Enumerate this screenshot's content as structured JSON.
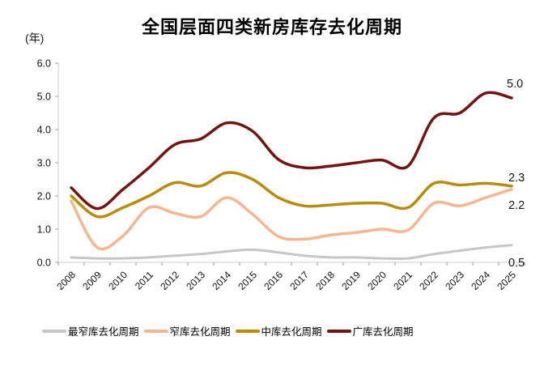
{
  "page": {
    "title": "全国层面四类新房库存去化周期",
    "unit_label": "(年)"
  },
  "chart_data": {
    "type": "line",
    "title": "全国层面四类新房库存去化周期",
    "ylabel": "(年)",
    "xlabel": "",
    "grid": false,
    "legend_position": "bottom",
    "categories": [
      "2008",
      "2009",
      "2010",
      "2011",
      "2012",
      "2013",
      "2014",
      "2015",
      "2016",
      "2017",
      "2018",
      "2019",
      "2020",
      "2021",
      "2022",
      "2023",
      "2024",
      "2025"
    ],
    "axis": {
      "ymin": 0,
      "ymax": 6,
      "ystep": 1,
      "ytick_labels": [
        "0.0",
        "1.0",
        "2.0",
        "3.0",
        "4.0",
        "5.0",
        "6.0"
      ],
      "axis_color": "#d6d6d6",
      "tick_color": "#aaaaaa",
      "label_color": "#111111"
    },
    "series": [
      {
        "name": "最窄库去化周期",
        "color": "#c6c6c6",
        "stroke_width": 3,
        "values": [
          0.15,
          0.12,
          0.12,
          0.15,
          0.2,
          0.25,
          0.33,
          0.38,
          0.3,
          0.2,
          0.15,
          0.15,
          0.12,
          0.12,
          0.25,
          0.35,
          0.45,
          0.52
        ]
      },
      {
        "name": "窄库去化周期",
        "color": "#f6b690",
        "stroke_width": 3.5,
        "values": [
          1.85,
          0.45,
          0.8,
          1.65,
          1.48,
          1.38,
          1.95,
          1.45,
          0.78,
          0.7,
          0.82,
          0.9,
          1.0,
          0.97,
          1.78,
          1.7,
          1.95,
          2.2
        ]
      },
      {
        "name": "中库去化周期",
        "color": "#b98d0a",
        "stroke_width": 3.5,
        "values": [
          2.0,
          1.38,
          1.65,
          2.0,
          2.4,
          2.3,
          2.7,
          2.5,
          1.95,
          1.7,
          1.73,
          1.78,
          1.78,
          1.65,
          2.38,
          2.33,
          2.38,
          2.3
        ]
      },
      {
        "name": "广库去化周期",
        "color": "#741410",
        "stroke_width": 3.5,
        "values": [
          2.25,
          1.62,
          2.2,
          2.85,
          3.55,
          3.72,
          4.2,
          3.95,
          3.1,
          2.85,
          2.9,
          3.0,
          3.08,
          2.9,
          4.35,
          4.5,
          5.1,
          4.95
        ]
      }
    ],
    "annotations": [
      {
        "text": "5.0",
        "x": 626,
        "y": 108
      },
      {
        "text": "2.3",
        "x": 628,
        "y": 224
      },
      {
        "text": "2.2",
        "x": 628,
        "y": 258
      },
      {
        "text": "0.5",
        "x": 628,
        "y": 329
      }
    ]
  }
}
